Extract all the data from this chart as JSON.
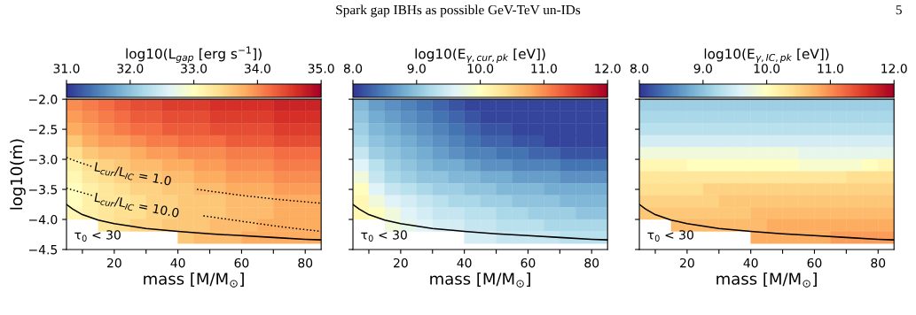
{
  "chart_data": [
    {
      "type": "heatmap",
      "annotations": [
        "τ$_{0}$ < 30",
        "L$_{cur}$/L$_{IC}$ = 1.0",
        "L$_{cur}$/L$_{IC}$ = 10.0"
      ],
      "clabel": "log10(L$_{gap}$ [erg s$^{−1}$])",
      "clim": [
        31,
        35
      ],
      "cticks": [
        {
          "value": 31,
          "label": "31.0"
        },
        {
          "value": 32,
          "label": "32.0"
        },
        {
          "value": 33,
          "label": "33.0"
        },
        {
          "value": 34,
          "label": "34.0"
        },
        {
          "value": 35,
          "label": "35.0"
        }
      ],
      "xlabel": "mass [M/M$_{⊙}$]",
      "ylabel": "log10(ṁ)",
      "xlim": [
        5,
        85
      ],
      "ylim": [
        -4.5,
        -2.0
      ],
      "xticks": [
        {
          "value": 10,
          "label": null
        },
        20,
        {
          "value": 30,
          "label": null
        },
        40,
        {
          "value": 50,
          "label": null
        },
        60,
        {
          "value": 70,
          "label": null
        },
        80
      ],
      "yticks": [
        {
          "value": -4.5,
          "label": "−4.5"
        },
        {
          "value": -4.0,
          "label": "−4.0"
        },
        {
          "value": -3.5,
          "label": "−3.5"
        },
        {
          "value": -3.0,
          "label": "−3.0"
        },
        {
          "value": -2.5,
          "label": "−2.5"
        },
        {
          "value": -2.0,
          "label": "−2.0"
        }
      ],
      "x": [
        7.5,
        12.5,
        17.5,
        22.5,
        27.5,
        32.5,
        37.5,
        42.5,
        47.5,
        52.5,
        57.5,
        62.5,
        67.5,
        72.5,
        77.5,
        82.5
      ],
      "y": [
        -2.1,
        -2.3,
        -2.5,
        -2.7,
        -2.9,
        -3.1,
        -3.3,
        -3.5,
        -3.7,
        -3.9,
        -4.1,
        -4.3
      ],
      "cells": [
        [
          34.0,
          34.1,
          34.2,
          34.3,
          34.4,
          34.4,
          34.5,
          34.5,
          34.5,
          34.6,
          34.6,
          34.6,
          34.6,
          34.7,
          34.7,
          34.7
        ],
        [
          33.9,
          34.0,
          34.1,
          34.2,
          34.3,
          34.3,
          34.4,
          34.4,
          34.4,
          34.5,
          34.5,
          34.5,
          34.5,
          34.6,
          34.6,
          34.6
        ],
        [
          33.8,
          33.9,
          34.0,
          34.1,
          34.2,
          34.2,
          34.3,
          34.3,
          34.3,
          34.4,
          34.4,
          34.4,
          34.4,
          34.5,
          34.5,
          34.5
        ],
        [
          33.6,
          33.8,
          33.9,
          33.9,
          34.0,
          34.1,
          34.1,
          34.2,
          34.2,
          34.2,
          34.3,
          34.3,
          34.3,
          34.4,
          34.4,
          34.4
        ],
        [
          33.4,
          33.6,
          33.7,
          33.7,
          33.8,
          33.9,
          33.9,
          34.0,
          34.0,
          34.0,
          34.1,
          34.1,
          34.1,
          34.2,
          34.2,
          34.2
        ],
        [
          33.2,
          33.4,
          33.5,
          33.6,
          33.7,
          33.7,
          33.8,
          33.8,
          33.9,
          33.9,
          34.0,
          34.0,
          34.0,
          34.1,
          34.1,
          34.1
        ],
        [
          33.1,
          33.3,
          33.4,
          33.5,
          33.6,
          33.6,
          33.7,
          33.7,
          33.8,
          33.8,
          33.9,
          33.9,
          33.9,
          34.0,
          34.0,
          34.0
        ],
        [
          33.0,
          33.2,
          33.3,
          33.4,
          33.5,
          33.5,
          33.6,
          33.6,
          33.7,
          33.7,
          33.8,
          33.8,
          33.8,
          33.9,
          33.9,
          33.9
        ],
        [
          33.0,
          33.2,
          33.3,
          33.3,
          33.4,
          33.5,
          33.5,
          33.6,
          33.6,
          33.6,
          33.7,
          33.7,
          33.7,
          33.8,
          33.8,
          33.8
        ],
        [
          33.1,
          33.2,
          33.3,
          33.4,
          33.4,
          33.5,
          33.5,
          33.6,
          33.6,
          33.6,
          33.7,
          33.7,
          33.7,
          33.8,
          33.8,
          33.8
        ],
        [
          null,
          null,
          33.3,
          33.4,
          33.5,
          33.5,
          33.6,
          33.6,
          33.6,
          33.7,
          33.7,
          33.7,
          33.8,
          33.8,
          33.8,
          33.8
        ],
        [
          null,
          null,
          null,
          null,
          null,
          null,
          null,
          33.6,
          33.7,
          33.7,
          33.7,
          33.8,
          33.8,
          33.8,
          33.8,
          33.8
        ]
      ],
      "series": [
        {
          "type": "line",
          "color": "#000000",
          "line_style": "solid",
          "x": [
            5,
            7,
            10,
            15,
            20,
            30,
            40,
            50,
            60,
            70,
            80,
            85
          ],
          "values": [
            -3.75,
            -3.83,
            -3.92,
            -4.01,
            -4.07,
            -4.15,
            -4.2,
            -4.24,
            -4.27,
            -4.3,
            -4.33,
            -4.34
          ]
        },
        {
          "type": "line",
          "color": "#000000",
          "line_style": "dotted",
          "x": [
            5,
            9,
            13,
            30,
            46,
            60,
            72,
            85
          ],
          "values": [
            -2.97,
            -3.05,
            -3.12,
            null,
            -3.5,
            -3.6,
            -3.67,
            -3.73
          ]
        },
        {
          "type": "line",
          "color": "#000000",
          "line_style": "dotted",
          "x": [
            5,
            9,
            13,
            30,
            48,
            60,
            72,
            85
          ],
          "values": [
            -3.48,
            -3.54,
            -3.6,
            null,
            -3.94,
            -4.03,
            -4.12,
            -4.2
          ]
        }
      ],
      "tick_labels": true
    },
    {
      "type": "heatmap",
      "title": "Spark gap IBHs as possible GeV-TeV un-IDs",
      "annotations": [
        "τ$_{0}$ < 30"
      ],
      "clabel": "log10(E$_{γ,cur,pk}$ [eV])",
      "clim": [
        8,
        12
      ],
      "cticks": [
        {
          "value": 8,
          "label": "8.0"
        },
        {
          "value": 9,
          "label": "9.0"
        },
        {
          "value": 10,
          "label": "10.0"
        },
        {
          "value": 11,
          "label": "11.0"
        },
        {
          "value": 12,
          "label": "12.0"
        }
      ],
      "xlabel": "mass [M/M$_{⊙}$]",
      "xlim": [
        5,
        85
      ],
      "ylim": [
        -4.5,
        -2.0
      ],
      "xticks": [
        {
          "value": 10,
          "label": null
        },
        20,
        {
          "value": 30,
          "label": null
        },
        40,
        {
          "value": 50,
          "label": null
        },
        60,
        {
          "value": 70,
          "label": null
        },
        80
      ],
      "yticks": [
        {
          "value": -4.5,
          "label": null
        },
        {
          "value": -4.0,
          "label": null
        },
        {
          "value": -3.5,
          "label": null
        },
        {
          "value": -3.0,
          "label": null
        },
        {
          "value": -2.5,
          "label": null
        },
        {
          "value": -2.0,
          "label": null
        }
      ],
      "x": [
        7.5,
        12.5,
        17.5,
        22.5,
        27.5,
        32.5,
        37.5,
        42.5,
        47.5,
        52.5,
        57.5,
        62.5,
        67.5,
        72.5,
        77.5,
        82.5
      ],
      "y": [
        -2.1,
        -2.3,
        -2.5,
        -2.7,
        -2.9,
        -3.1,
        -3.3,
        -3.5,
        -3.7,
        -3.9,
        -4.1,
        -4.3
      ],
      "cells": [
        [
          8.9,
          8.7,
          8.6,
          8.5,
          8.4,
          8.3,
          8.2,
          8.1,
          8.1,
          8.1,
          8.1,
          8.1,
          8.1,
          8.1,
          8.1,
          8.1
        ],
        [
          9.0,
          8.8,
          8.7,
          8.6,
          8.5,
          8.4,
          8.3,
          8.2,
          8.1,
          8.1,
          8.1,
          8.1,
          8.1,
          8.1,
          8.1,
          8.1
        ],
        [
          9.1,
          8.9,
          8.8,
          8.7,
          8.6,
          8.5,
          8.4,
          8.3,
          8.2,
          8.2,
          8.1,
          8.1,
          8.1,
          8.1,
          8.1,
          8.1
        ],
        [
          9.2,
          9.0,
          8.9,
          8.8,
          8.7,
          8.6,
          8.5,
          8.4,
          8.3,
          8.3,
          8.2,
          8.2,
          8.1,
          8.1,
          8.1,
          8.1
        ],
        [
          9.4,
          9.1,
          9.0,
          8.9,
          8.8,
          8.7,
          8.6,
          8.5,
          8.5,
          8.4,
          8.4,
          8.3,
          8.3,
          8.2,
          8.2,
          8.2
        ],
        [
          9.6,
          9.3,
          9.1,
          9.0,
          8.9,
          8.8,
          8.8,
          8.7,
          8.6,
          8.6,
          8.5,
          8.5,
          8.5,
          8.4,
          8.4,
          8.4
        ],
        [
          9.8,
          9.4,
          9.2,
          9.1,
          9.0,
          9.0,
          8.9,
          8.9,
          8.8,
          8.8,
          8.7,
          8.7,
          8.7,
          8.6,
          8.6,
          8.6
        ],
        [
          10.0,
          9.6,
          9.4,
          9.3,
          9.2,
          9.1,
          9.1,
          9.0,
          9.0,
          8.9,
          8.9,
          8.9,
          8.8,
          8.8,
          8.8,
          8.8
        ],
        [
          10.1,
          9.8,
          9.6,
          9.5,
          9.4,
          9.3,
          9.2,
          9.2,
          9.1,
          9.1,
          9.0,
          9.0,
          9.0,
          8.9,
          8.9,
          8.9
        ],
        [
          10.1,
          10.0,
          9.8,
          9.6,
          9.5,
          9.4,
          9.4,
          9.3,
          9.3,
          9.2,
          9.2,
          9.1,
          9.1,
          9.1,
          9.0,
          9.0
        ],
        [
          null,
          null,
          9.8,
          9.7,
          9.6,
          9.5,
          9.5,
          9.4,
          9.4,
          9.3,
          9.3,
          9.3,
          9.2,
          9.2,
          9.2,
          9.2
        ],
        [
          null,
          null,
          null,
          null,
          null,
          null,
          null,
          9.5,
          9.5,
          9.4,
          9.4,
          9.4,
          9.4,
          9.3,
          9.3,
          9.3
        ]
      ],
      "series": [
        {
          "type": "line",
          "color": "#000000",
          "line_style": "solid",
          "x": [
            5,
            7,
            10,
            15,
            20,
            30,
            40,
            50,
            60,
            70,
            80,
            85
          ],
          "values": [
            -3.75,
            -3.83,
            -3.92,
            -4.01,
            -4.07,
            -4.15,
            -4.2,
            -4.24,
            -4.27,
            -4.3,
            -4.33,
            -4.34
          ]
        }
      ],
      "tick_labels": "x"
    },
    {
      "type": "heatmap",
      "annotations": [
        "τ$_{0}$ < 30",
        "5"
      ],
      "clabel": "log10(E$_{γ,IC,pk}$ [eV])",
      "clim": [
        8,
        12
      ],
      "cticks": [
        {
          "value": 8,
          "label": "8.0"
        },
        {
          "value": 9,
          "label": "9.0"
        },
        {
          "value": 10,
          "label": "10.0"
        },
        {
          "value": 11,
          "label": "11.0"
        },
        {
          "value": 12,
          "label": "12.0"
        }
      ],
      "xlabel": "mass [M/M$_{⊙}$]",
      "xlim": [
        5,
        85
      ],
      "ylim": [
        -4.5,
        -2.0
      ],
      "xticks": [
        {
          "value": 10,
          "label": null
        },
        20,
        {
          "value": 30,
          "label": null
        },
        40,
        {
          "value": 50,
          "label": null
        },
        60,
        {
          "value": 70,
          "label": null
        },
        80
      ],
      "yticks": [
        {
          "value": -4.5,
          "label": null
        },
        {
          "value": -4.0,
          "label": null
        },
        {
          "value": -3.5,
          "label": null
        },
        {
          "value": -3.0,
          "label": null
        },
        {
          "value": -2.5,
          "label": null
        },
        {
          "value": -2.0,
          "label": null
        }
      ],
      "x": [
        7.5,
        12.5,
        17.5,
        22.5,
        27.5,
        32.5,
        37.5,
        42.5,
        47.5,
        52.5,
        57.5,
        62.5,
        67.5,
        72.5,
        77.5,
        82.5
      ],
      "y": [
        -2.1,
        -2.3,
        -2.5,
        -2.7,
        -2.9,
        -3.1,
        -3.3,
        -3.5,
        -3.7,
        -3.9,
        -4.1,
        -4.3
      ],
      "cells": [
        [
          9.1,
          9.1,
          9.1,
          9.1,
          9.1,
          9.1,
          9.1,
          9.1,
          9.1,
          9.1,
          9.1,
          9.1,
          9.1,
          9.1,
          9.1,
          9.1
        ],
        [
          9.2,
          9.2,
          9.2,
          9.2,
          9.2,
          9.2,
          9.2,
          9.2,
          9.2,
          9.2,
          9.2,
          9.2,
          9.2,
          9.2,
          9.2,
          9.2
        ],
        [
          9.3,
          9.3,
          9.3,
          9.3,
          9.3,
          9.3,
          9.3,
          9.3,
          9.3,
          9.3,
          9.3,
          9.3,
          9.3,
          9.3,
          9.3,
          9.3
        ],
        [
          9.5,
          9.5,
          9.5,
          9.5,
          9.5,
          9.5,
          9.5,
          9.5,
          9.5,
          9.5,
          9.5,
          9.5,
          9.5,
          9.5,
          9.5,
          9.5
        ],
        [
          9.8,
          9.8,
          9.8,
          9.8,
          9.8,
          9.8,
          9.8,
          9.8,
          9.8,
          9.8,
          9.7,
          9.7,
          9.7,
          9.7,
          9.7,
          9.7
        ],
        [
          10.1,
          10.1,
          10.1,
          10.0,
          10.0,
          10.0,
          10.0,
          10.0,
          10.0,
          10.0,
          9.9,
          9.9,
          9.9,
          9.9,
          10.0,
          10.1
        ],
        [
          10.3,
          10.3,
          10.3,
          10.3,
          10.3,
          10.3,
          10.3,
          10.3,
          10.3,
          10.3,
          10.3,
          10.3,
          10.3,
          10.4,
          10.4,
          10.4
        ],
        [
          10.4,
          10.4,
          10.4,
          10.4,
          10.5,
          10.5,
          10.5,
          10.5,
          10.5,
          10.5,
          10.5,
          10.5,
          10.5,
          10.5,
          10.5,
          10.5
        ],
        [
          10.5,
          10.5,
          10.5,
          10.5,
          10.5,
          10.6,
          10.6,
          10.6,
          10.6,
          10.6,
          10.6,
          10.6,
          10.6,
          10.6,
          10.6,
          10.6
        ],
        [
          10.6,
          10.6,
          10.6,
          10.6,
          10.6,
          10.6,
          10.6,
          10.7,
          10.7,
          10.7,
          10.7,
          10.7,
          10.7,
          10.7,
          10.7,
          10.7
        ],
        [
          null,
          null,
          10.7,
          10.7,
          10.7,
          10.7,
          10.7,
          10.7,
          10.8,
          10.8,
          10.8,
          10.8,
          10.8,
          10.8,
          10.8,
          10.8
        ],
        [
          null,
          null,
          null,
          null,
          null,
          null,
          null,
          10.8,
          10.8,
          10.8,
          10.8,
          10.8,
          10.9,
          10.9,
          10.9,
          10.9
        ]
      ],
      "series": [
        {
          "type": "line",
          "color": "#000000",
          "line_style": "solid",
          "x": [
            5,
            7,
            10,
            15,
            20,
            30,
            40,
            50,
            60,
            70,
            80,
            85
          ],
          "values": [
            -3.75,
            -3.83,
            -3.92,
            -4.01,
            -4.07,
            -4.15,
            -4.2,
            -4.24,
            -4.27,
            -4.3,
            -4.33,
            -4.34
          ]
        }
      ],
      "tick_labels": "x"
    }
  ]
}
